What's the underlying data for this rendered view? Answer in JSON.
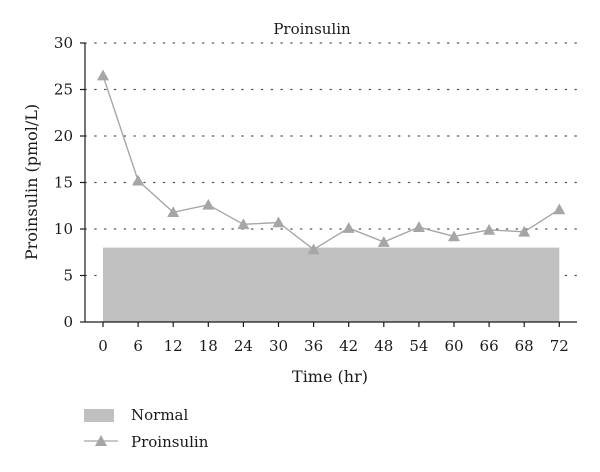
{
  "chart_data": {
    "type": "line",
    "title": "Proinsulin",
    "xlabel": "Time (hr)",
    "ylabel": "Proinsulin (pmol/L)",
    "categories": [
      "0",
      "6",
      "12",
      "18",
      "24",
      "30",
      "36",
      "42",
      "48",
      "54",
      "60",
      "66",
      "68",
      "72"
    ],
    "ylim": [
      0,
      30
    ],
    "yticks": [
      0,
      5,
      10,
      15,
      20,
      25,
      30
    ],
    "grid": "horizontal-dotted",
    "legend_position": "bottom-left",
    "series": [
      {
        "name": "Normal",
        "type": "area",
        "values": [
          8,
          8,
          8,
          8,
          8,
          8,
          8,
          8,
          8,
          8,
          8,
          8,
          8,
          8
        ],
        "color": "#c0c0c0"
      },
      {
        "name": "Proinsulin",
        "type": "line",
        "marker": "triangle",
        "values": [
          26.5,
          15.2,
          11.8,
          12.6,
          10.5,
          10.7,
          7.8,
          10.1,
          8.6,
          10.2,
          9.2,
          9.9,
          9.7,
          12.1
        ],
        "color": "#a6a6a6"
      }
    ]
  }
}
